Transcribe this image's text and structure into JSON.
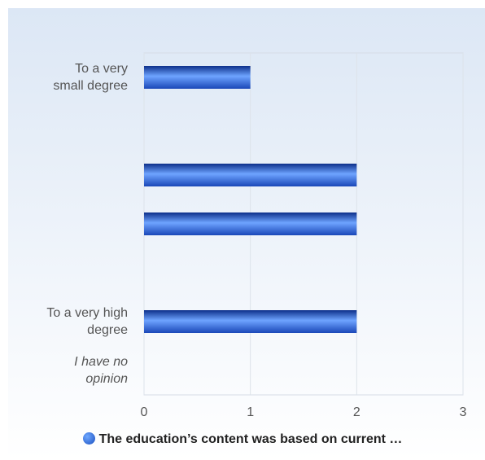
{
  "chart_data": {
    "type": "bar",
    "orientation": "horizontal",
    "categories": [
      "To a very small degree",
      null,
      null,
      null,
      null,
      "To a very high degree",
      "I have no opinion"
    ],
    "series": [
      {
        "name": "The education’s content was based on current …",
        "color": "#2a62d6",
        "values": [
          1,
          0,
          2,
          2,
          0,
          2,
          0
        ]
      }
    ],
    "xlim": [
      0,
      3
    ],
    "xticks": [
      0,
      1,
      2,
      3
    ],
    "grid": true
  }
}
